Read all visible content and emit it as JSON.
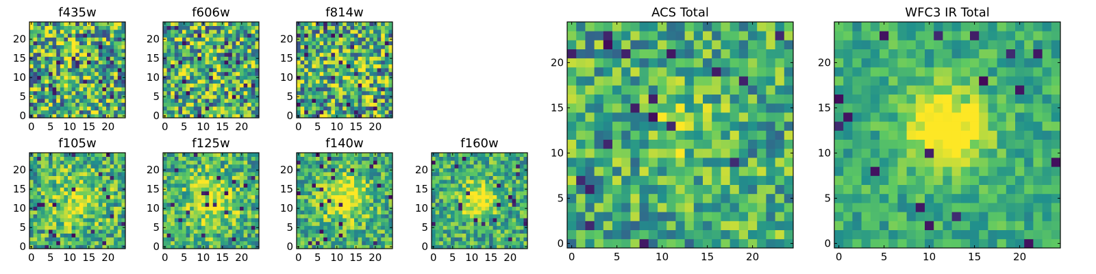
{
  "figure": {
    "colormap": "viridis",
    "palette": [
      "#440154",
      "#3b528b",
      "#21918c",
      "#5ec962",
      "#fde725"
    ]
  },
  "chart_data": [
    {
      "type": "heatmap",
      "title": "f435w",
      "grid_size": 25,
      "xlim": [
        0,
        25
      ],
      "ylim": [
        0,
        25
      ],
      "xticks": [
        0,
        5,
        10,
        15,
        20
      ],
      "yticks": [
        0,
        5,
        10,
        15,
        20
      ],
      "center_peak": 0.08,
      "peak_width": 4,
      "noise": 0.85
    },
    {
      "type": "heatmap",
      "title": "f606w",
      "grid_size": 25,
      "xlim": [
        0,
        25
      ],
      "ylim": [
        0,
        25
      ],
      "xticks": [
        0,
        5,
        10,
        15,
        20
      ],
      "yticks": [
        0,
        5,
        10,
        15,
        20
      ],
      "center_peak": 0.08,
      "peak_width": 4,
      "noise": 0.85
    },
    {
      "type": "heatmap",
      "title": "f814w",
      "grid_size": 25,
      "xlim": [
        0,
        25
      ],
      "ylim": [
        0,
        25
      ],
      "xticks": [
        0,
        5,
        10,
        15,
        20
      ],
      "yticks": [
        0,
        5,
        10,
        15,
        20
      ],
      "center_peak": 0.12,
      "peak_width": 4,
      "noise": 0.85
    },
    {
      "type": "heatmap",
      "title": "f105w",
      "grid_size": 25,
      "xlim": [
        0,
        25
      ],
      "ylim": [
        0,
        25
      ],
      "xticks": [
        0,
        5,
        10,
        15,
        20
      ],
      "yticks": [
        0,
        5,
        10,
        15,
        20
      ],
      "center_peak": 0.3,
      "peak_width": 5,
      "noise": 0.6
    },
    {
      "type": "heatmap",
      "title": "f125w",
      "grid_size": 25,
      "xlim": [
        0,
        25
      ],
      "ylim": [
        0,
        25
      ],
      "xticks": [
        0,
        5,
        10,
        15,
        20
      ],
      "yticks": [
        0,
        5,
        10,
        15,
        20
      ],
      "center_peak": 0.35,
      "peak_width": 5,
      "noise": 0.6
    },
    {
      "type": "heatmap",
      "title": "f140w",
      "grid_size": 25,
      "xlim": [
        0,
        25
      ],
      "ylim": [
        0,
        25
      ],
      "xticks": [
        0,
        5,
        10,
        15,
        20
      ],
      "yticks": [
        0,
        5,
        10,
        15,
        20
      ],
      "center_peak": 0.45,
      "peak_width": 4,
      "noise": 0.55
    },
    {
      "type": "heatmap",
      "title": "f160w",
      "grid_size": 25,
      "xlim": [
        0,
        25
      ],
      "ylim": [
        0,
        25
      ],
      "xticks": [
        0,
        5,
        10,
        15,
        20
      ],
      "yticks": [
        0,
        5,
        10,
        15,
        20
      ],
      "center_peak": 0.55,
      "peak_width": 3,
      "noise": 0.55
    },
    {
      "type": "heatmap",
      "title": "ACS Total",
      "grid_size": 25,
      "xlim": [
        0,
        25
      ],
      "ylim": [
        0,
        25
      ],
      "xticks": [
        0,
        5,
        10,
        15,
        20
      ],
      "yticks": [
        0,
        5,
        10,
        15,
        20
      ],
      "center_peak": 0.2,
      "peak_width": 3,
      "noise": 0.6
    },
    {
      "type": "heatmap",
      "title": "WFC3 IR Total",
      "grid_size": 25,
      "xlim": [
        0,
        25
      ],
      "ylim": [
        0,
        25
      ],
      "xticks": [
        0,
        5,
        10,
        15,
        20
      ],
      "yticks": [
        0,
        5,
        10,
        15,
        20
      ],
      "center_peak": 0.6,
      "peak_width": 3,
      "noise": 0.35
    }
  ]
}
